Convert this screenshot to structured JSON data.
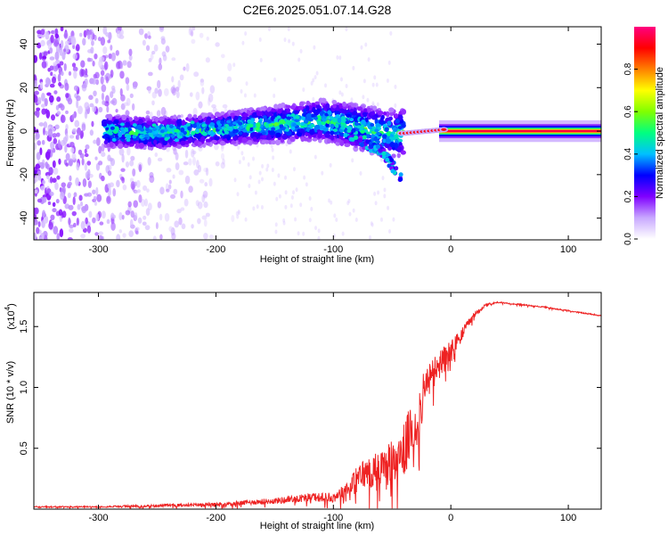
{
  "title": "C2E6.2025.051.07.14.G28",
  "chart_data": [
    {
      "type": "heatmap",
      "xlabel": "Height of straight line (km)",
      "ylabel": "Frequency (Hz)",
      "xlim": [
        -355,
        128
      ],
      "ylim": [
        -50,
        48
      ],
      "xticks": [
        -300,
        -200,
        -100,
        0,
        100
      ],
      "yticks": [
        -40,
        -20,
        0,
        20,
        40
      ],
      "grid": false,
      "colorbar": {
        "label": "Normalized spectral amplitude",
        "range": [
          0,
          1
        ],
        "ticks": [
          0.0,
          0.2,
          0.4,
          0.6,
          0.8
        ],
        "colors": [
          "#ffffff",
          "#c8a8ff",
          "#8000ff",
          "#0000ff",
          "#00c0ff",
          "#00ff80",
          "#80ff00",
          "#ffff00",
          "#ff8000",
          "#ff0000",
          "#ff0080"
        ]
      },
      "features": {
        "main_track_hz": [
          {
            "x": -295,
            "y": 0
          },
          {
            "x": -250,
            "y": -1
          },
          {
            "x": -200,
            "y": 1
          },
          {
            "x": -150,
            "y": 3
          },
          {
            "x": -110,
            "y": 5
          },
          {
            "x": -80,
            "y": 2
          },
          {
            "x": -55,
            "y": -1
          },
          {
            "x": -40,
            "y": -1
          },
          {
            "x": -20,
            "y": 0
          },
          {
            "x": 0,
            "y": 1
          },
          {
            "x": 10,
            "y": 0
          },
          {
            "x": 128,
            "y": 0
          }
        ],
        "descending_branch_hz": [
          {
            "x": -90,
            "y": 0
          },
          {
            "x": -70,
            "y": -6
          },
          {
            "x": -55,
            "y": -12
          },
          {
            "x": -42,
            "y": -22
          }
        ]
      }
    },
    {
      "type": "line",
      "xlabel": "Height of straight line (km)",
      "ylabel": "SNR (10 * v/v)",
      "y_multiplier": "(x10",
      "y_multiplier_exp": "4",
      "xlim": [
        -355,
        128
      ],
      "ylim": [
        0,
        1.78
      ],
      "xticks": [
        -300,
        -200,
        -100,
        0,
        100
      ],
      "yticks": [
        0.5,
        1.0,
        1.5
      ],
      "ytick_labels": [
        "0.5",
        "1.0",
        "1.5"
      ],
      "grid": false,
      "color": "#ee2222",
      "series": [
        {
          "x": [
            -355,
            -300,
            -250,
            -200,
            -150,
            -120,
            -100,
            -85,
            -75,
            -60,
            -50,
            -40,
            -30,
            -20,
            -10,
            0,
            10,
            20,
            30,
            40,
            60,
            80,
            100,
            128
          ],
          "y": [
            0.02,
            0.02,
            0.03,
            0.04,
            0.07,
            0.1,
            0.1,
            0.2,
            0.3,
            0.35,
            0.4,
            0.5,
            0.75,
            1.05,
            1.2,
            1.3,
            1.45,
            1.6,
            1.68,
            1.7,
            1.68,
            1.66,
            1.63,
            1.59
          ],
          "spread": [
            0.01,
            0.01,
            0.02,
            0.03,
            0.05,
            0.07,
            0.08,
            0.18,
            0.25,
            0.3,
            0.4,
            0.45,
            0.5,
            0.3,
            0.25,
            0.2,
            0.1,
            0.05,
            0.02,
            0.01,
            0.01,
            0.01,
            0.01,
            0.01
          ]
        }
      ]
    }
  ]
}
